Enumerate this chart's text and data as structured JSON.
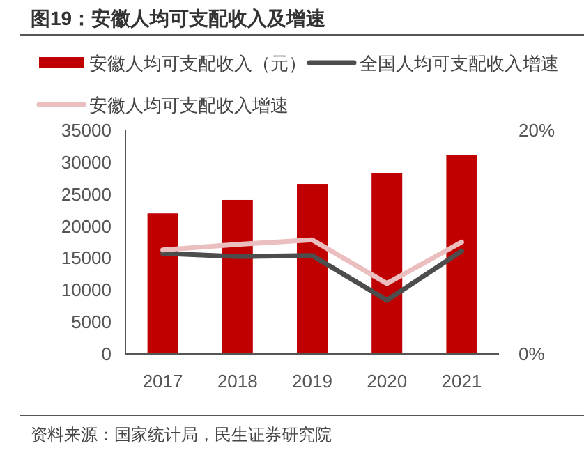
{
  "chart_data": {
    "type": "bar",
    "title": "图19：安徽人均可支配收入及增速",
    "categories": [
      "2017",
      "2018",
      "2019",
      "2020",
      "2021"
    ],
    "series": [
      {
        "name": "安徽人均可支配收入（元）",
        "color": "#c00000",
        "values": [
          22000,
          24100,
          26600,
          28300,
          31100
        ]
      },
      {
        "name": "全国人均可支配收入增速",
        "type": "line",
        "axis": "y2",
        "color": "#4d4d4d",
        "values": [
          9.0,
          8.7,
          8.8,
          4.8,
          9.2
        ]
      },
      {
        "name": "安徽人均可支配收入增速",
        "type": "line",
        "axis": "y2",
        "color": "#ebbfbf",
        "values": [
          9.3,
          9.8,
          10.2,
          6.3,
          10.0
        ]
      }
    ],
    "ylim": [
      0,
      35000
    ],
    "yticks": [
      0,
      5000,
      10000,
      15000,
      20000,
      25000,
      30000,
      35000
    ],
    "y2lim": [
      0,
      20
    ],
    "y2ticks": [
      {
        "value": 0,
        "label": "0%"
      },
      {
        "value": 20,
        "label": "20%"
      }
    ],
    "grid": false,
    "legend": "top",
    "annotations": [
      "资料来源：国家统计局，民生证券研究院"
    ]
  }
}
